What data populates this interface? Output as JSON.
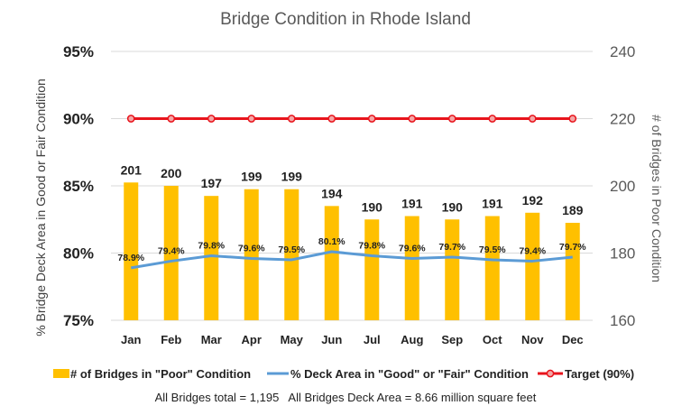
{
  "chart_data": {
    "type": "bar",
    "title": "Bridge Condition in Rhode Island",
    "categories": [
      "Jan",
      "Feb",
      "Mar",
      "Apr",
      "May",
      "Jun",
      "Jul",
      "Aug",
      "Sep",
      "Oct",
      "Nov",
      "Dec"
    ],
    "ylabel_left": "% Bridge Deck Area in Good or Fair Condition",
    "ylabel_right": "# of Bridges in Poor Condition",
    "ylim_left": [
      75,
      95
    ],
    "ylim_right": [
      160,
      240
    ],
    "left_ticks": [
      "75%",
      "80%",
      "85%",
      "90%",
      "95%"
    ],
    "right_ticks": [
      "160",
      "180",
      "200",
      "220",
      "240"
    ],
    "series": [
      {
        "name": "# of Bridges in \"Poor\" Condition",
        "type": "bar",
        "axis": "right",
        "color": "#FFC000",
        "values": [
          201,
          200,
          197,
          199,
          199,
          194,
          190,
          191,
          190,
          191,
          192,
          189
        ],
        "labels": [
          "201",
          "200",
          "197",
          "199",
          "199",
          "194",
          "190",
          "191",
          "190",
          "191",
          "192",
          "189"
        ]
      },
      {
        "name": "% Deck Area in \"Good\" or \"Fair\" Condition",
        "type": "line",
        "axis": "left",
        "color": "#5B9BD5",
        "values": [
          78.9,
          79.4,
          79.8,
          79.6,
          79.5,
          80.1,
          79.8,
          79.6,
          79.7,
          79.5,
          79.4,
          79.7
        ],
        "labels": [
          "78.9%",
          "79.4%",
          "79.8%",
          "79.6%",
          "79.5%",
          "80.1%",
          "79.8%",
          "79.6%",
          "79.7%",
          "79.5%",
          "79.4%",
          "79.7%"
        ]
      },
      {
        "name": "Target (90%)",
        "type": "line",
        "axis": "left",
        "color": "#E8141C",
        "values": [
          90,
          90,
          90,
          90,
          90,
          90,
          90,
          90,
          90,
          90,
          90,
          90
        ]
      }
    ],
    "grid": "horizontal",
    "legend_position": "bottom"
  },
  "footer": {
    "note": "All Bridges total = 1,195   All Bridges Deck Area = 8.66 million square feet"
  }
}
